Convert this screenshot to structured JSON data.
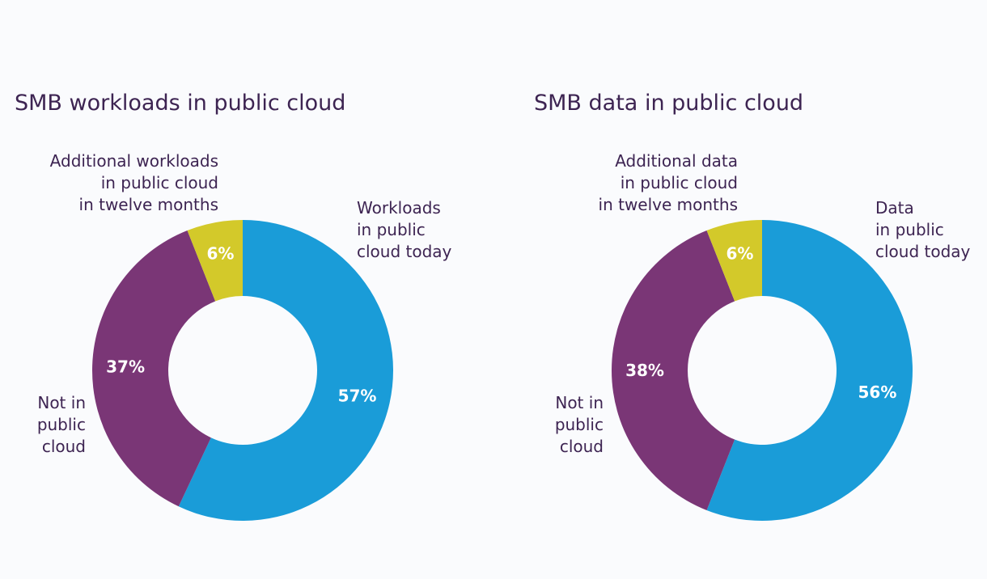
{
  "chart_data": [
    {
      "type": "pie",
      "variant": "donut",
      "title": "SMB workloads in public cloud",
      "slices": [
        {
          "label_lines": [
            "Workloads",
            "in public",
            "cloud today"
          ],
          "value": 57,
          "value_label": "57%",
          "color": "#1a9cd8",
          "label_color": "#ffffff"
        },
        {
          "label_lines": [
            "Not in",
            "public",
            "cloud"
          ],
          "value": 37,
          "value_label": "37%",
          "color": "#7a3676",
          "label_color": "#ffffff"
        },
        {
          "label_lines": [
            "Additional workloads",
            "in public cloud",
            "in twelve months"
          ],
          "value": 6,
          "value_label": "6%",
          "color": "#d3c92a",
          "label_color": "#ffffff"
        }
      ]
    },
    {
      "type": "pie",
      "variant": "donut",
      "title": "SMB data in public cloud",
      "slices": [
        {
          "label_lines": [
            "Data",
            "in public",
            "cloud today"
          ],
          "value": 56,
          "value_label": "56%",
          "color": "#1a9cd8",
          "label_color": "#ffffff"
        },
        {
          "label_lines": [
            "Not in",
            "public",
            "cloud"
          ],
          "value": 38,
          "value_label": "38%",
          "color": "#7a3676",
          "label_color": "#ffffff"
        },
        {
          "label_lines": [
            "Additional data",
            "in public cloud",
            "in twelve months"
          ],
          "value": 6,
          "value_label": "6%",
          "color": "#d3c92a",
          "label_color": "#ffffff"
        }
      ]
    }
  ]
}
